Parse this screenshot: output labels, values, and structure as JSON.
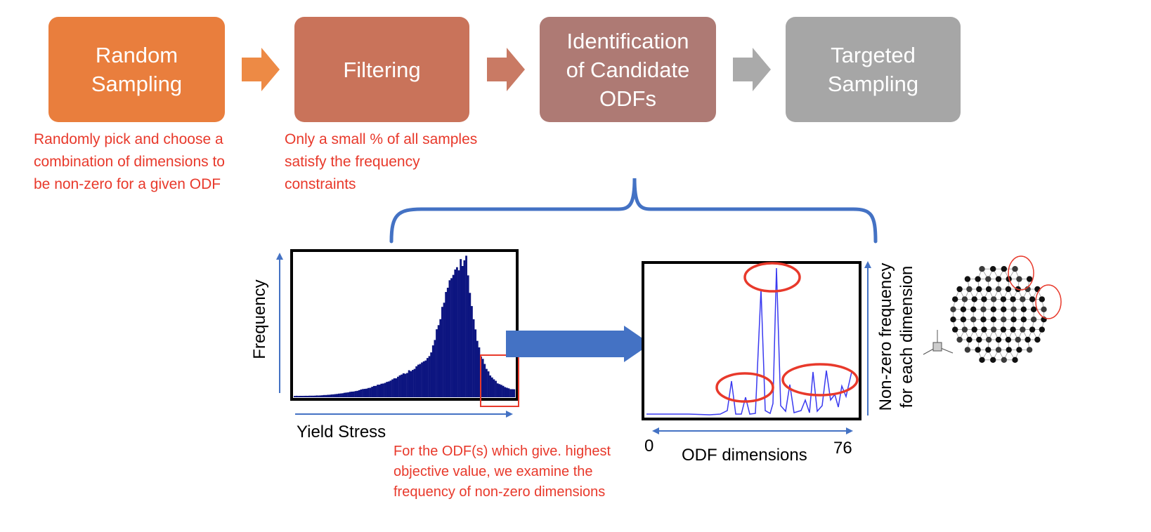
{
  "steps": [
    {
      "label": "Random\nSampling",
      "color": "#e97e3d"
    },
    {
      "label": "Filtering",
      "color": "#c9735a"
    },
    {
      "label": "Identification\nof Candidate\nODFs",
      "color": "#ae7a74"
    },
    {
      "label": "Targeted\nSampling",
      "color": "#a6a6a6"
    }
  ],
  "notes": {
    "random_sampling": "Randomly pick and choose a\ncombination of dimensions to\nbe non-zero for a given ODF",
    "filtering": "Only a small % of all samples\nsatisfy the frequency\nconstraints",
    "highest_objective": "For the ODF(s) which give. highest\nobjective value, we examine the\nfrequency of non-zero dimensions"
  },
  "histogram": {
    "y_title": "Frequency",
    "x_title": "Yield Stress",
    "bar_color": "#0d1580"
  },
  "frequency_plot": {
    "y_title": "Non-zero frequency\nfor each dimension",
    "x_title": "ODF dimensions",
    "x_min_label": "0",
    "x_max_label": "76",
    "line_color": "#3a3af0"
  },
  "colors": {
    "accent_blue": "#4472c4",
    "highlight_red": "#e8392b"
  },
  "icons": {
    "flow": "right-arrow-icon",
    "mesh": "sphere-mesh-icon"
  }
}
